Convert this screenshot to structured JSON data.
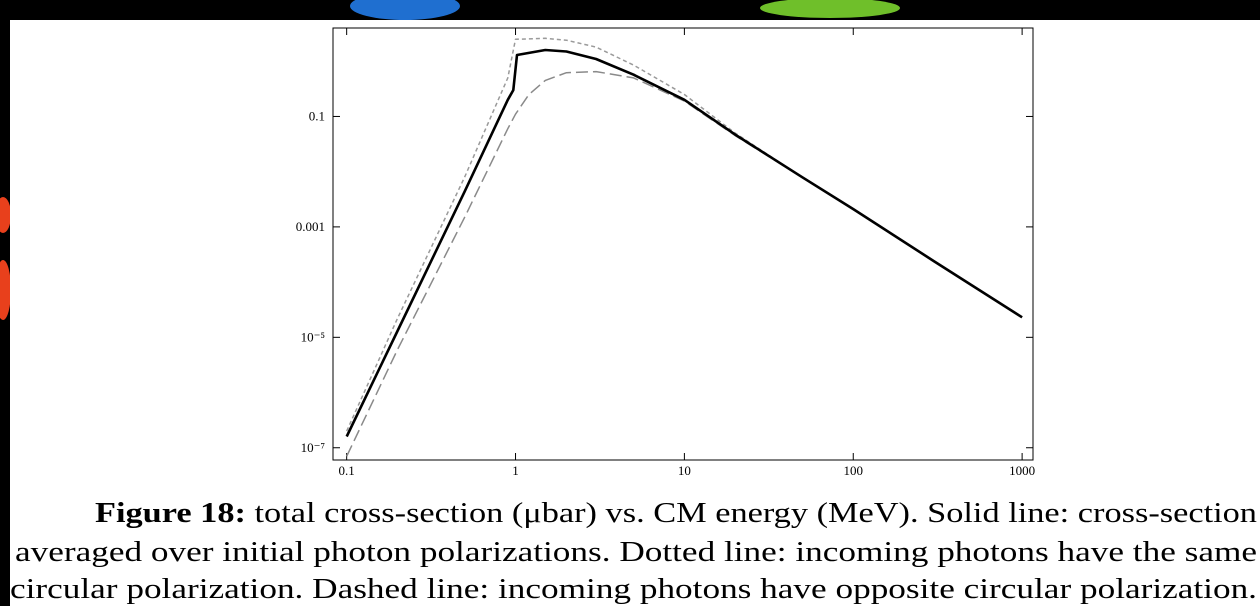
{
  "chart_data": {
    "type": "line",
    "xscale": "log",
    "yscale": "log",
    "xlim": [
      0.083,
      1160
    ],
    "ylim": [
      6e-08,
      4
    ],
    "xticks": [
      0.1,
      1,
      10,
      100,
      1000
    ],
    "yticks": [
      {
        "value": 0.1,
        "label": "0.1"
      },
      {
        "value": 0.001,
        "label": "0.001"
      },
      {
        "value": 1e-05,
        "label": "10⁻⁵"
      },
      {
        "value": 1e-07,
        "label": "10⁻⁷"
      }
    ],
    "series": [
      {
        "color": "#000000",
        "dash": "solid",
        "x": [
          0.1,
          0.2,
          0.5,
          0.9,
          0.97,
          1.02,
          1.5,
          2,
          3,
          5,
          10,
          20,
          50,
          100,
          300,
          1000
        ],
        "values": [
          1.6e-07,
          1.3e-05,
          0.0044,
          0.2,
          0.3,
          1.3,
          1.6,
          1.5,
          1.1,
          0.57,
          0.2,
          0.047,
          0.0079,
          0.0021,
          0.00024,
          2.3e-05
        ]
      },
      {
        "color": "#9a9a9a",
        "dash": "dotted",
        "x": [
          0.1,
          0.2,
          0.5,
          0.9,
          1.0,
          1.5,
          2,
          3,
          5,
          10,
          20,
          50,
          100,
          300,
          1000
        ],
        "values": [
          2e-07,
          2.2e-05,
          0.008,
          0.5,
          2.5,
          2.6,
          2.4,
          1.8,
          0.85,
          0.25,
          0.05,
          0.0079,
          0.0021,
          0.00024,
          2.3e-05
        ]
      },
      {
        "color": "#8a8a8a",
        "dash": "dashed",
        "x": [
          0.1,
          0.2,
          0.5,
          0.9,
          1.0,
          1.2,
          1.5,
          2,
          3,
          5,
          10,
          20,
          50,
          100,
          300,
          1000
        ],
        "values": [
          7e-08,
          6e-06,
          0.0015,
          0.06,
          0.11,
          0.25,
          0.45,
          0.62,
          0.65,
          0.5,
          0.19,
          0.045,
          0.0078,
          0.0021,
          0.00024,
          2.3e-05
        ]
      }
    ],
    "caption_label": "Figure 18:",
    "caption_lines": [
      " total cross-section (μbar) vs. CM energy (MeV). Solid line: cross-section",
      "averaged over initial photon polarizations. Dotted line: incoming photons have the same",
      "circular polarization. Dashed line: incoming photons have opposite circular polarization."
    ]
  }
}
